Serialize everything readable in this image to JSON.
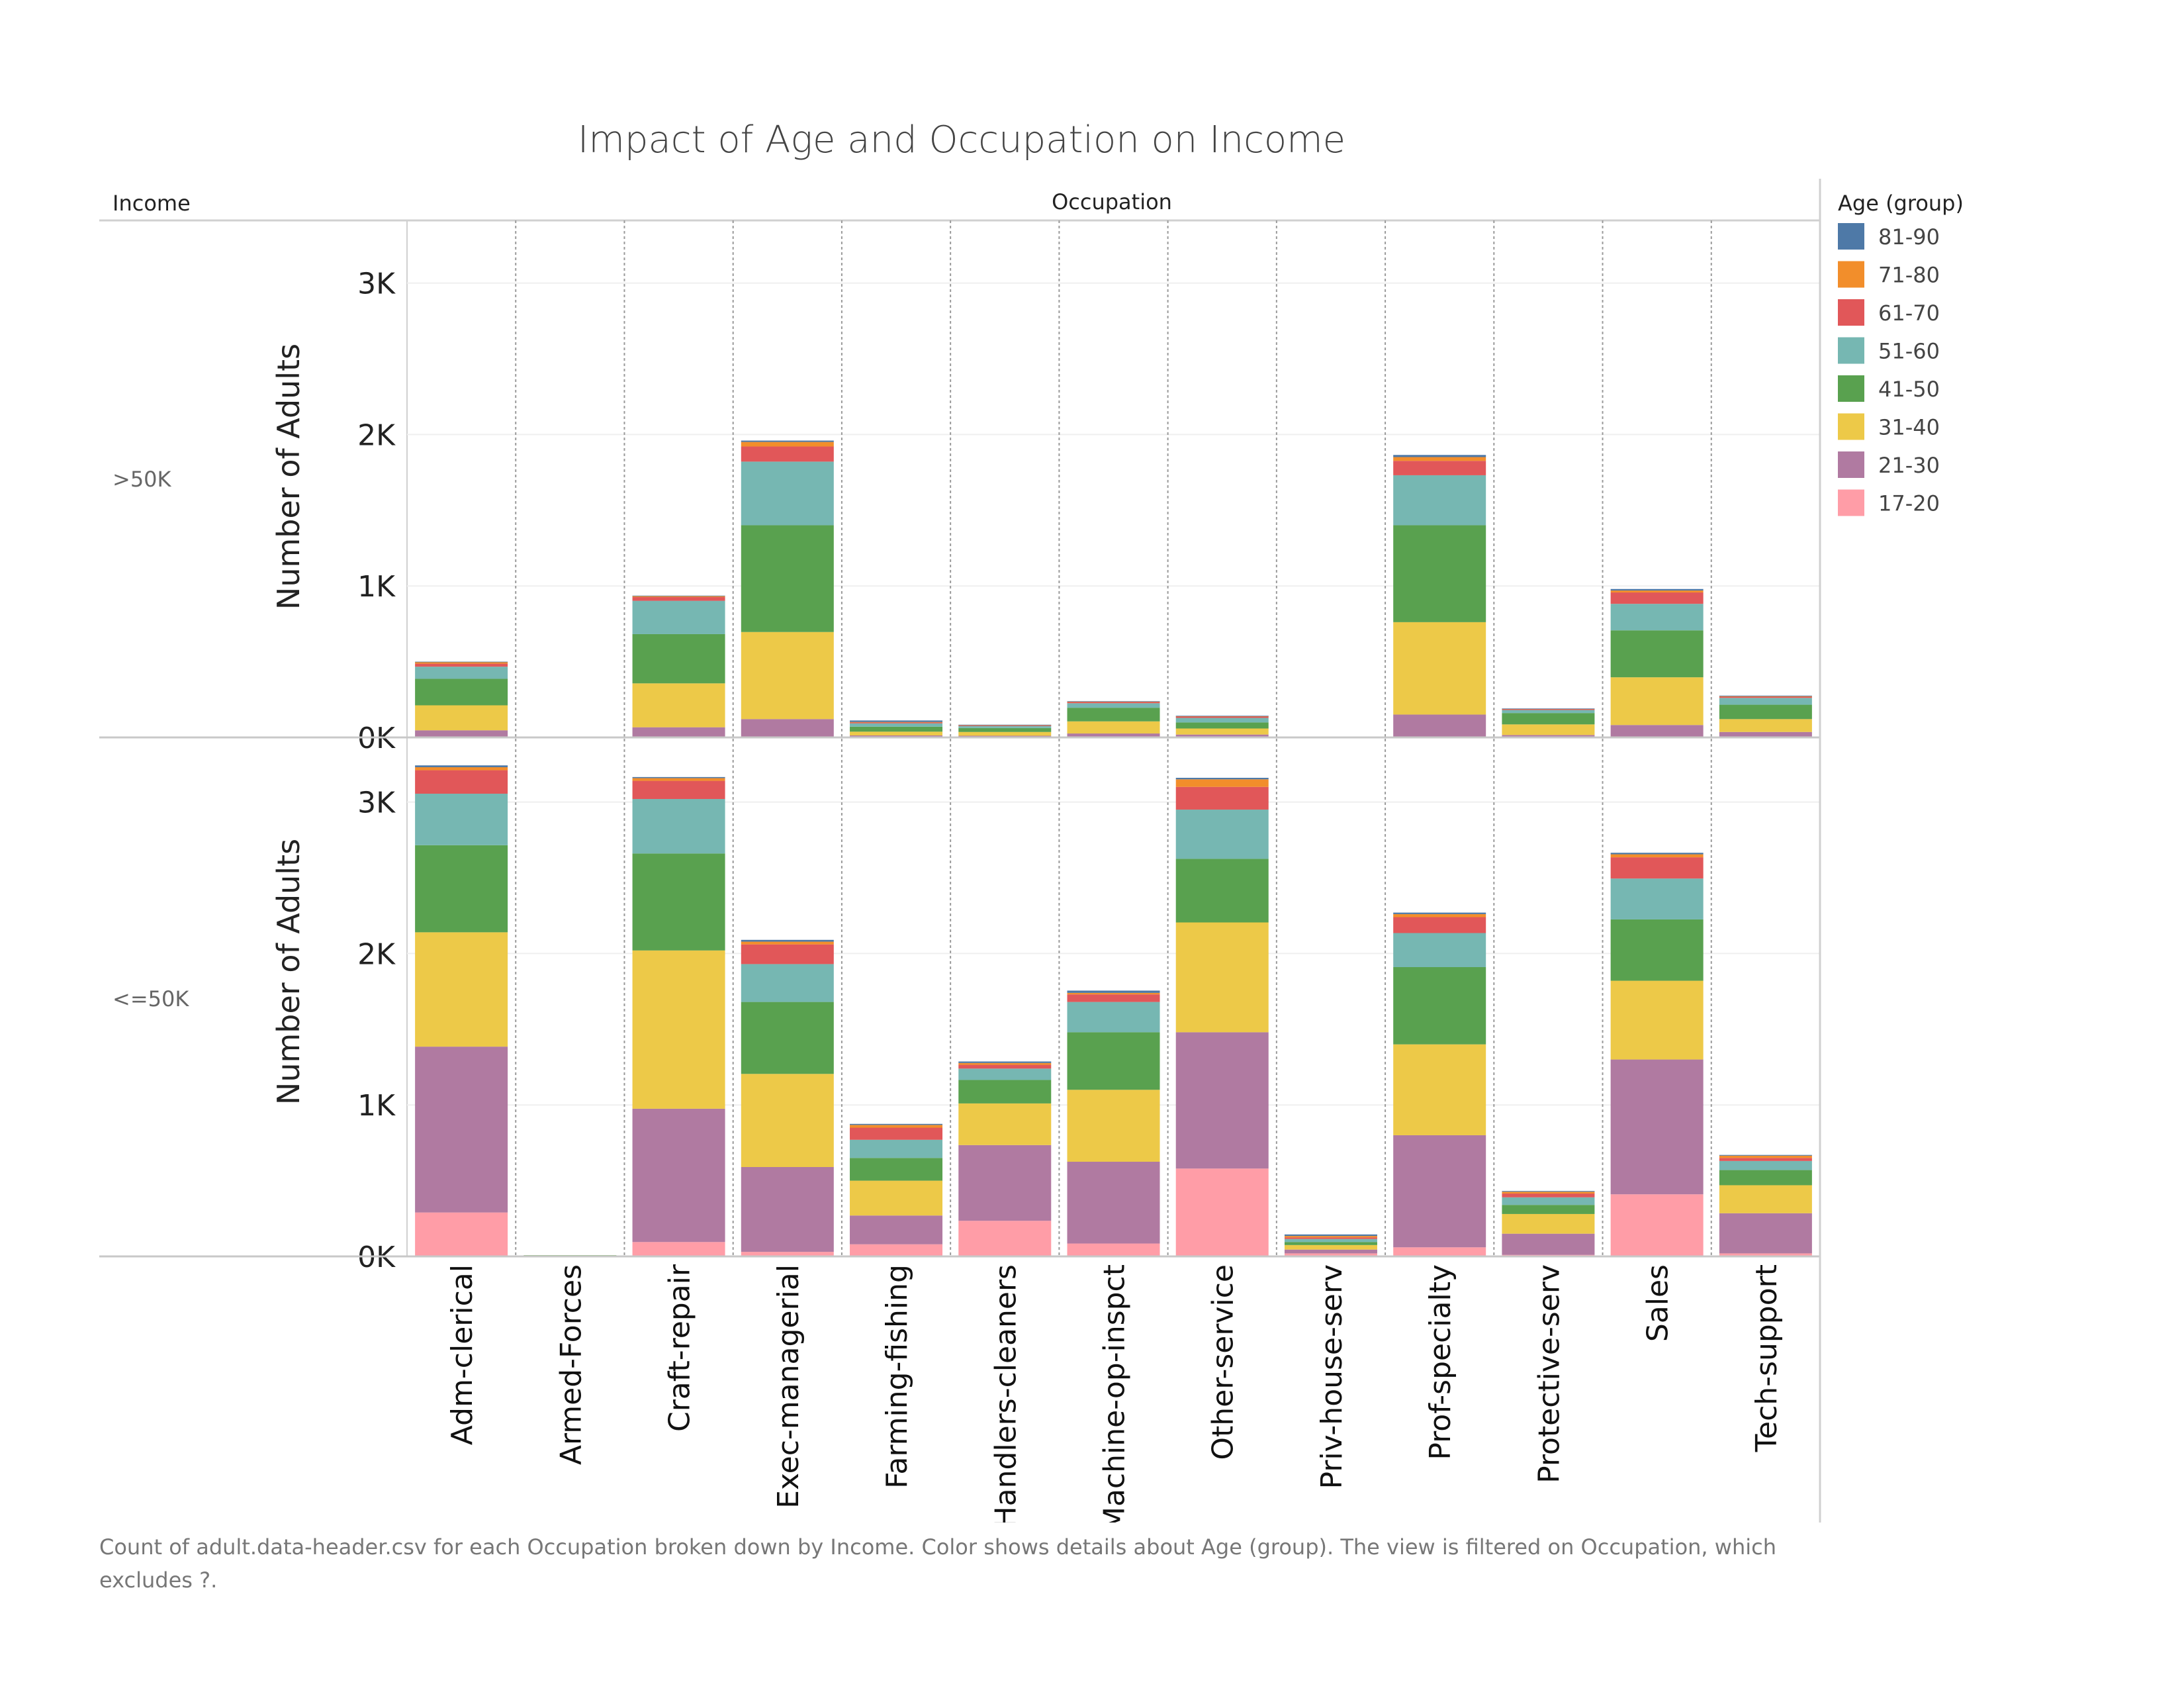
{
  "header": {
    "title": "Impact of Age and Occupation on Income",
    "row_header": "Income",
    "column_header": "Occupation"
  },
  "caption": "Count of adult.data-header.csv for each Occupation broken down by Income.  Color shows details about Age (group). The view is filtered on Occupation, which excludes ?.",
  "legend": {
    "title": "Age (group)",
    "entries": [
      {
        "label": "81-90",
        "color": "#4e79a7"
      },
      {
        "label": "71-80",
        "color": "#f28e2b"
      },
      {
        "label": "61-70",
        "color": "#e15759"
      },
      {
        "label": "51-60",
        "color": "#76b7b2"
      },
      {
        "label": "41-50",
        "color": "#59a14f"
      },
      {
        "label": "31-40",
        "color": "#edc948"
      },
      {
        "label": "21-30",
        "color": "#b07aa1"
      },
      {
        "label": "17-20",
        "color": "#ff9da7"
      }
    ]
  },
  "chart_data": {
    "type": "bar",
    "stacked": true,
    "title": "Impact of Age and Occupation on Income",
    "xlabel": "Occupation",
    "ylabel": "Number of Adults",
    "ylim": [
      0,
      3400
    ],
    "y_ticks": [
      0,
      1000,
      2000,
      3000
    ],
    "y_tick_labels": [
      "0K",
      "1K",
      "2K",
      "3K"
    ],
    "grid": true,
    "legend_position": "right",
    "categories": [
      "Adm-clerical",
      "Armed-Forces",
      "Craft-repair",
      "Exec-managerial",
      "Farming-fishing",
      "Handlers-cleaners",
      "Machine-op-inspct",
      "Other-service",
      "Priv-house-serv",
      "Prof-specialty",
      "Protective-serv",
      "Sales",
      "Tech-support"
    ],
    "series_order": [
      "17-20",
      "21-30",
      "31-40",
      "41-50",
      "51-60",
      "61-70",
      "71-80",
      "81-90"
    ],
    "panels": [
      {
        "label": ">50K",
        "series": [
          {
            "name": "17-20",
            "values": [
              2,
              0,
              2,
              1,
              1,
              1,
              1,
              1,
              0,
              1,
              1,
              2,
              1
            ]
          },
          {
            "name": "21-30",
            "values": [
              45,
              0,
              65,
              120,
              12,
              10,
              25,
              18,
              0,
              150,
              15,
              80,
              35
            ]
          },
          {
            "name": "31-40",
            "values": [
              165,
              1,
              290,
              575,
              25,
              25,
              80,
              40,
              0,
              610,
              70,
              315,
              85
            ]
          },
          {
            "name": "41-50",
            "values": [
              175,
              0,
              325,
              705,
              33,
              26,
              90,
              40,
              0,
              640,
              75,
              310,
              95
            ]
          },
          {
            "name": "51-60",
            "values": [
              80,
              0,
              220,
              420,
              22,
              13,
              30,
              30,
              0,
              330,
              20,
              175,
              45
            ]
          },
          {
            "name": "61-70",
            "values": [
              20,
              0,
              25,
              100,
              7,
              6,
              9,
              10,
              0,
              95,
              7,
              75,
              8
            ]
          },
          {
            "name": "71-80",
            "values": [
              12,
              0,
              7,
              30,
              2,
              1,
              2,
              2,
              0,
              25,
              2,
              13,
              3
            ]
          },
          {
            "name": "81-90",
            "values": [
              1,
              0,
              2,
              9,
              10,
              2,
              2,
              2,
              0,
              14,
              1,
              10,
              4
            ]
          }
        ]
      },
      {
        "label": "<=50K",
        "series": [
          {
            "name": "17-20",
            "values": [
              290,
              1,
              95,
              30,
              80,
              235,
              85,
              580,
              20,
              60,
              10,
              410,
              20
            ]
          },
          {
            "name": "21-30",
            "values": [
              1095,
              3,
              880,
              560,
              190,
              500,
              540,
              900,
              25,
              740,
              140,
              890,
              265
            ]
          },
          {
            "name": "31-40",
            "values": [
              755,
              3,
              1045,
              615,
              230,
              275,
              475,
              725,
              30,
              600,
              130,
              520,
              185
            ]
          },
          {
            "name": "41-50",
            "values": [
              575,
              1,
              640,
              475,
              150,
              155,
              380,
              420,
              20,
              510,
              60,
              405,
              100
            ]
          },
          {
            "name": "51-60",
            "values": [
              340,
              0,
              360,
              250,
              120,
              75,
              200,
              325,
              20,
              225,
              50,
              270,
              60
            ]
          },
          {
            "name": "61-70",
            "values": [
              155,
              0,
              120,
              130,
              80,
              25,
              50,
              150,
              10,
              105,
              25,
              140,
              20
            ]
          },
          {
            "name": "71-80",
            "values": [
              20,
              0,
              18,
              18,
              18,
              12,
              10,
              50,
              10,
              20,
              12,
              20,
              15
            ]
          },
          {
            "name": "81-90",
            "values": [
              12,
              0,
              7,
              12,
              7,
              10,
              15,
              10,
              10,
              10,
              5,
              10,
              5
            ]
          }
        ]
      }
    ]
  }
}
